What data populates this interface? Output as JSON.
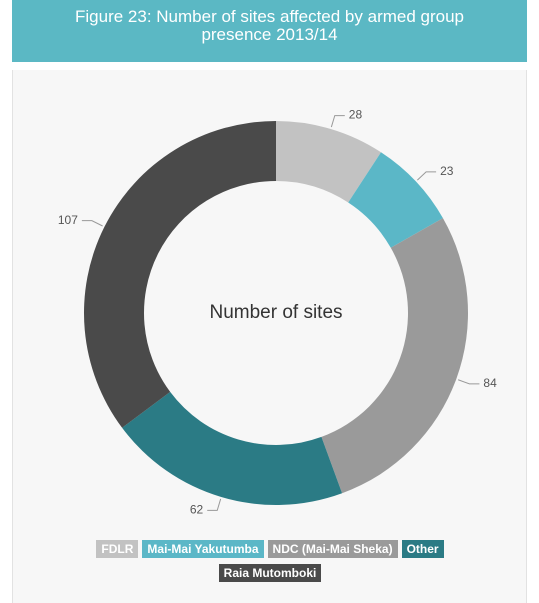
{
  "chart_data": {
    "type": "donut",
    "title": "Figure 23: Number of sites affected by armed group presence 2013/14",
    "center_label": "Number of sites",
    "categories": [
      "FDLR",
      "Mai-Mai Yakutumba",
      "NDC (Mai-Mai Sheka)",
      "Other",
      "Raia Mutomboki"
    ],
    "values": [
      28,
      23,
      84,
      62,
      107
    ],
    "colors": [
      "#c2c2c2",
      "#5bb7c7",
      "#9a9a9a",
      "#2b7b85",
      "#4a4a4a"
    ],
    "legend": "bottom"
  }
}
